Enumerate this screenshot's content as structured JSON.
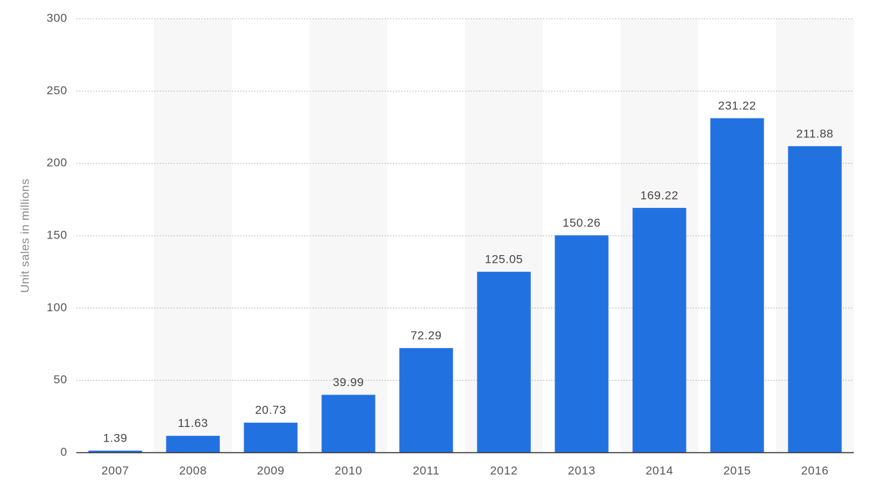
{
  "chart_data": {
    "type": "bar",
    "y_label": "Unit sales in millions",
    "categories": [
      "2007",
      "2008",
      "2009",
      "2010",
      "2011",
      "2012",
      "2013",
      "2014",
      "2015",
      "2016"
    ],
    "values": [
      1.39,
      11.63,
      20.73,
      39.99,
      72.29,
      125.05,
      150.26,
      169.22,
      231.22,
      211.88
    ],
    "color": "#2271e0",
    "ylim": [
      0,
      300
    ],
    "yticks": [
      0,
      50,
      100,
      150,
      200,
      250,
      300
    ],
    "grid": true
  }
}
